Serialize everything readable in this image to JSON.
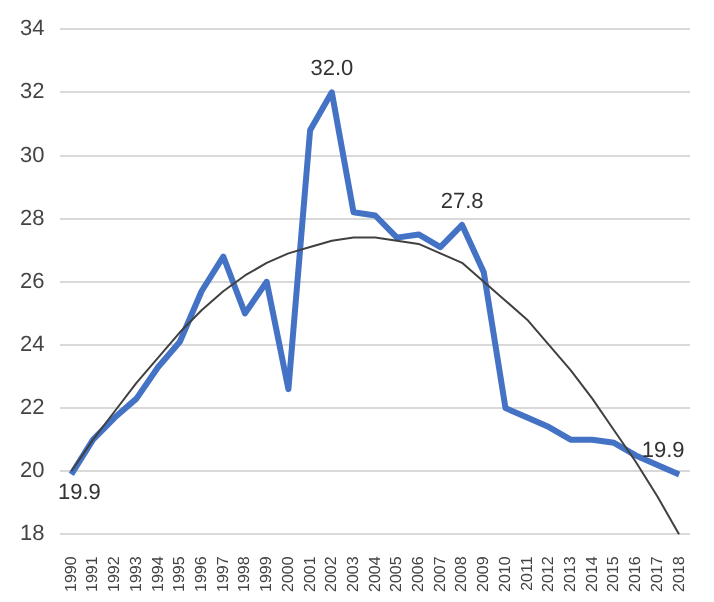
{
  "chart_data": {
    "type": "line",
    "categories": [
      "1990",
      "1991",
      "1992",
      "1993",
      "1994",
      "1995",
      "1996",
      "1997",
      "1998",
      "1999",
      "2000",
      "2001",
      "2002",
      "2003",
      "2004",
      "2005",
      "2006",
      "2007",
      "2008",
      "2009",
      "2010",
      "2011",
      "2012",
      "2013",
      "2014",
      "2015",
      "2016",
      "2017",
      "2018"
    ],
    "series": [
      {
        "color": "#4472c4",
        "values": [
          19.9,
          21.0,
          21.7,
          22.3,
          23.3,
          24.1,
          25.7,
          26.8,
          25.0,
          26.0,
          22.6,
          30.8,
          32.0,
          28.2,
          28.1,
          27.4,
          27.5,
          27.1,
          27.8,
          26.3,
          22.0,
          21.7,
          21.4,
          21.0,
          21.0,
          20.9,
          20.5,
          20.2,
          19.9
        ],
        "value_labels": [
          "19.9",
          null,
          null,
          null,
          null,
          null,
          null,
          null,
          null,
          null,
          null,
          null,
          "32.0",
          null,
          null,
          null,
          null,
          null,
          "27.8",
          null,
          null,
          null,
          null,
          null,
          null,
          null,
          null,
          null,
          "19.9"
        ]
      },
      {
        "type": "line",
        "color": "#404040",
        "values": [
          20.0,
          21.0,
          21.9,
          22.8,
          23.6,
          24.4,
          25.1,
          25.7,
          26.2,
          26.6,
          26.9,
          27.1,
          27.3,
          27.4,
          27.4,
          27.3,
          27.2,
          26.9,
          26.6,
          26.0,
          25.4,
          24.8,
          24.0,
          23.2,
          22.3,
          21.3,
          20.3,
          19.2,
          18.0
        ]
      }
    ],
    "ylim": [
      18,
      34
    ],
    "yticks": [
      18,
      20,
      22,
      24,
      26,
      28,
      30,
      32,
      34
    ],
    "grid": "y",
    "legend": false,
    "marker": "none"
  }
}
